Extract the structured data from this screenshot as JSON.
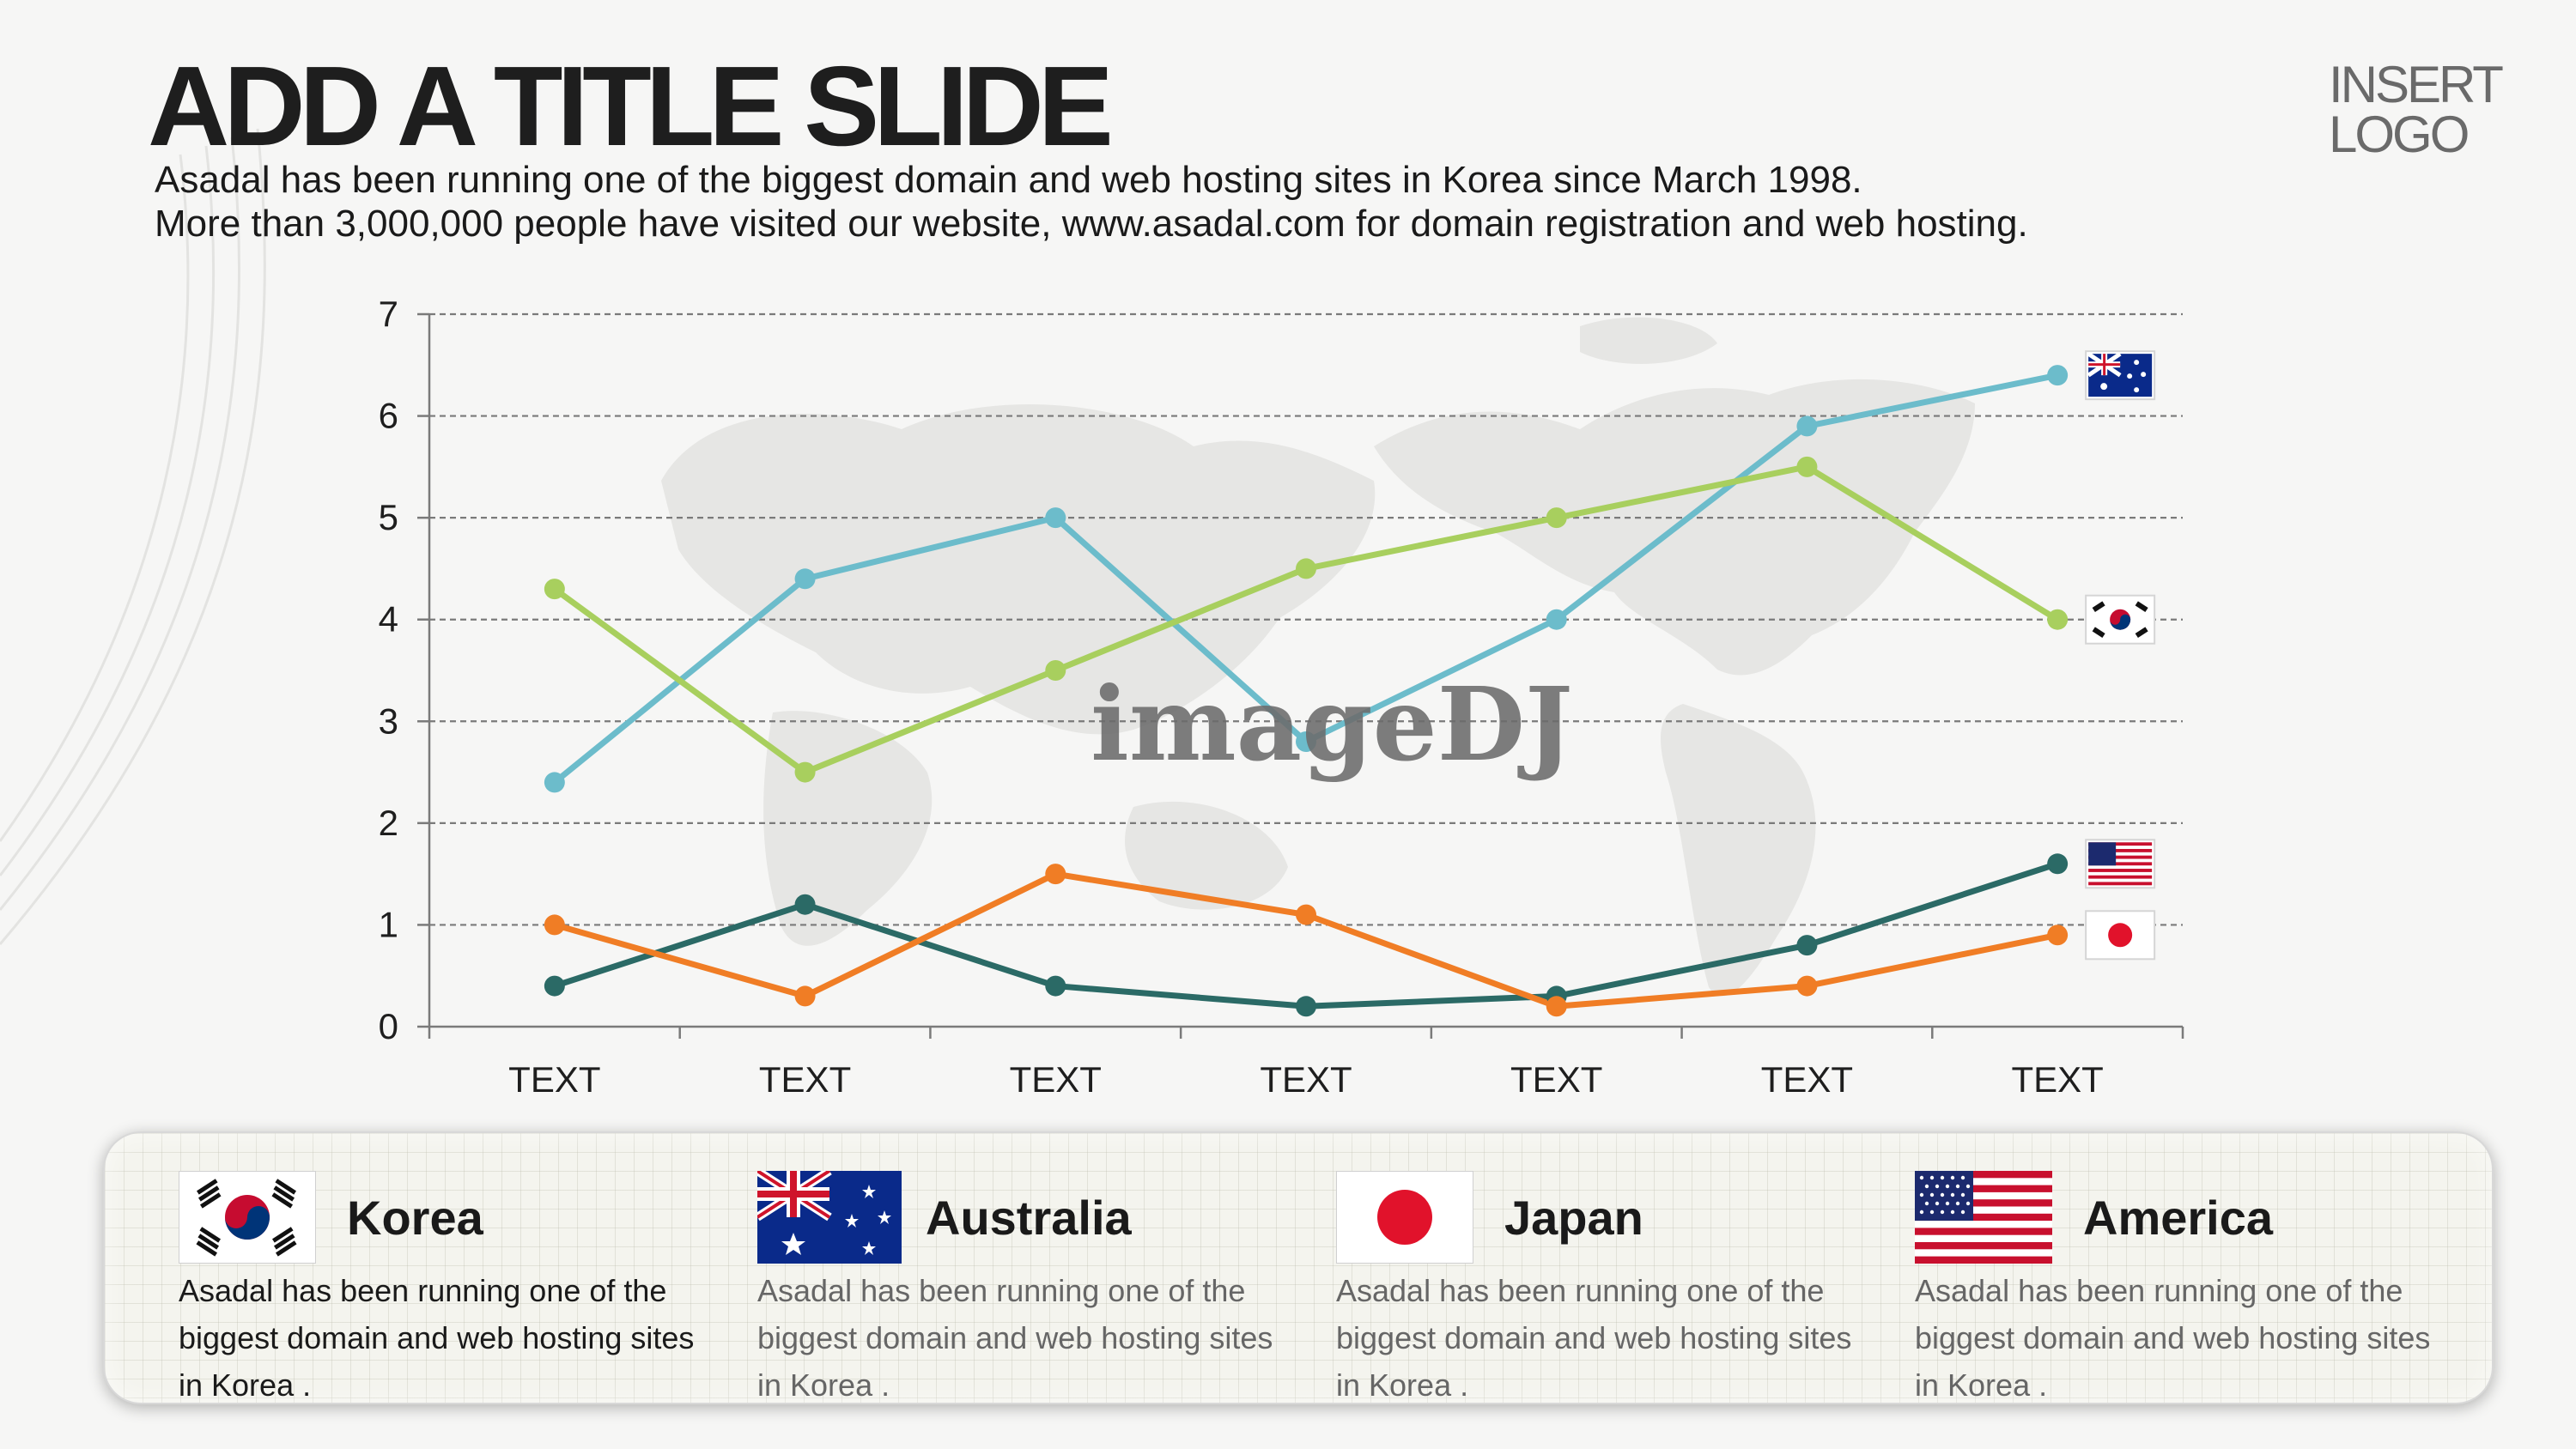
{
  "title": "ADD A TITLE SLIDE",
  "subtitle": [
    "Asadal has been running one of the biggest domain and web hosting sites in Korea since March 1998.",
    "More than 3,000,000 people have visited our website,  www.asadal.com for domain registration and web hosting."
  ],
  "logo": [
    "INSERT",
    "LOGO"
  ],
  "watermark": "imageDJ",
  "colors": {
    "australia": "#6cbccb",
    "korea": "#a8cf5e",
    "america": "#2b6a66",
    "japan": "#f07d25"
  },
  "chart_data": {
    "type": "line",
    "categories": [
      "TEXT",
      "TEXT",
      "TEXT",
      "TEXT",
      "TEXT",
      "TEXT",
      "TEXT"
    ],
    "ylim": [
      0,
      7
    ],
    "yticks": [
      0,
      1,
      2,
      3,
      4,
      5,
      6,
      7
    ],
    "grid": true,
    "series": [
      {
        "name": "Australia",
        "flag": "australia-flag-icon",
        "color": "#6cbccb",
        "values": [
          2.4,
          4.4,
          5.0,
          2.8,
          4.0,
          5.9,
          6.4
        ]
      },
      {
        "name": "Korea",
        "flag": "korea-flag-icon",
        "color": "#a8cf5e",
        "values": [
          4.3,
          2.5,
          3.5,
          4.5,
          5.0,
          5.5,
          4.0
        ]
      },
      {
        "name": "America",
        "flag": "usa-flag-icon",
        "color": "#2b6a66",
        "values": [
          0.4,
          1.2,
          0.4,
          0.2,
          0.3,
          0.8,
          1.6
        ]
      },
      {
        "name": "Japan",
        "flag": "japan-flag-icon",
        "color": "#f07d25",
        "values": [
          1.0,
          0.3,
          1.5,
          1.1,
          0.2,
          0.4,
          0.9
        ]
      }
    ]
  },
  "countries": [
    {
      "name": "Korea",
      "flag": "korea-flag-icon",
      "description": "Asadal has been running one of the biggest domain and web hosting sites in Korea ."
    },
    {
      "name": "Australia",
      "flag": "australia-flag-icon",
      "description": "Asadal has been running one of the biggest domain and web hosting sites in Korea ."
    },
    {
      "name": "Japan",
      "flag": "japan-flag-icon",
      "description": "Asadal has been running one of the biggest domain and web hosting sites in Korea ."
    },
    {
      "name": "America",
      "flag": "usa-flag-icon",
      "description": "Asadal has been running one of the biggest domain and web hosting sites in Korea ."
    }
  ]
}
